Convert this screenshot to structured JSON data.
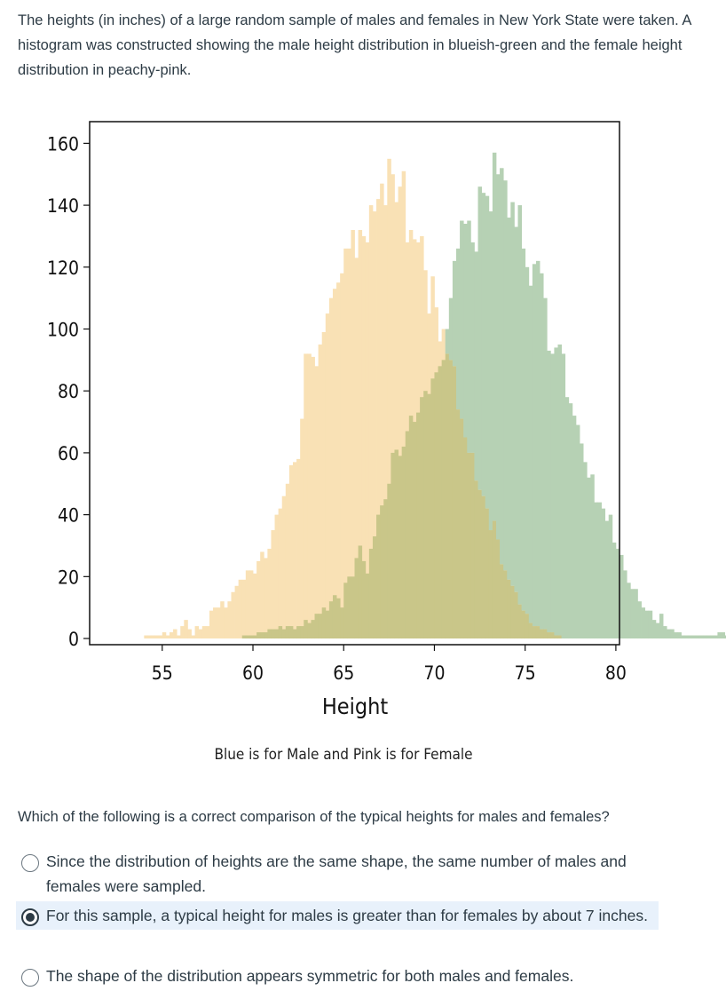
{
  "intro_text": "The heights (in inches) of a large random sample of males and females in New York State were taken. A histogram was constructed showing the male height distribution in blueish-green and the female height distribution in peachy-pink.",
  "question_text": "Which of the following is a correct comparison of the typical heights for males and females?",
  "options": [
    {
      "label": "Since the distribution of heights are the same shape, the same number of males and females were sampled.",
      "selected": false
    },
    {
      "label": "For this sample, a typical height for males is greater than for females by about 7 inches.",
      "selected": true
    },
    {
      "label": "The shape of the distribution appears symmetric for both males and females.",
      "selected": false
    }
  ],
  "chart_data": {
    "type": "bar",
    "title": "",
    "xlabel": "Height",
    "ylabel": "",
    "caption": "Blue is for Male and Pink is for Female",
    "xlim": [
      51,
      80.2
    ],
    "ylim": [
      -2,
      167
    ],
    "xticks": [
      55,
      60,
      65,
      70,
      75,
      80
    ],
    "yticks": [
      0,
      20,
      40,
      60,
      80,
      100,
      120,
      140,
      160
    ],
    "bin_width": 0.2,
    "colors": {
      "female": "#f9e1b5",
      "male": "#b6d1b4",
      "overlap": "#c9c689"
    },
    "series": [
      {
        "start": 54.0,
        "values": [
          1,
          1,
          1,
          1,
          1,
          2,
          1,
          2,
          3,
          1,
          4,
          6,
          3,
          1,
          4,
          3,
          4,
          4,
          9,
          10,
          10,
          12,
          10,
          12,
          15,
          17,
          19,
          19,
          22,
          22,
          21,
          25,
          28,
          26,
          29,
          35,
          40,
          42,
          46,
          50,
          56,
          57,
          58,
          71,
          92,
          92,
          91,
          88,
          95,
          99,
          105,
          110,
          113,
          115,
          118,
          126,
          126,
          132,
          123,
          132,
          130,
          128,
          140,
          138,
          142,
          147,
          140,
          155,
          150,
          141,
          146,
          151,
          128,
          132,
          129,
          128,
          130,
          119,
          105,
          117,
          107,
          96,
          100,
          92,
          90,
          88,
          74,
          71,
          65,
          60,
          60,
          51,
          48,
          46,
          42,
          35,
          38,
          32,
          24,
          22,
          19,
          17,
          15,
          11,
          9,
          8,
          5,
          4,
          4,
          3,
          3,
          2,
          2,
          1,
          1
        ]
      },
      {
        "start": 59.4,
        "values": [
          1,
          1,
          1,
          1,
          2,
          2,
          2,
          3,
          3,
          3,
          4,
          3,
          4,
          4,
          3,
          4,
          4,
          6,
          5,
          6,
          8,
          8,
          10,
          9,
          12,
          14,
          13,
          10,
          18,
          20,
          20,
          26,
          30,
          25,
          21,
          29,
          33,
          40,
          43,
          45,
          50,
          60,
          61,
          59,
          62,
          67,
          72,
          70,
          73,
          78,
          80,
          79,
          84,
          86,
          88,
          90,
          100,
          110,
          122,
          126,
          135,
          134,
          135,
          128,
          125,
          146,
          144,
          143,
          138,
          157,
          150,
          152,
          148,
          136,
          141,
          133,
          140,
          126,
          120,
          114,
          121,
          122,
          118,
          110,
          93,
          92,
          94,
          95,
          92,
          78,
          76,
          72,
          69,
          63,
          57,
          52,
          53,
          44,
          44,
          42,
          38,
          40,
          31,
          29,
          27,
          22,
          18,
          16,
          16,
          12,
          10,
          9,
          9,
          6,
          5,
          8,
          4,
          3,
          3,
          2,
          2,
          1,
          1,
          1,
          1,
          1,
          1,
          1,
          1,
          1,
          1,
          2,
          2,
          1
        ]
      }
    ],
    "legend": "none",
    "grid": false
  }
}
